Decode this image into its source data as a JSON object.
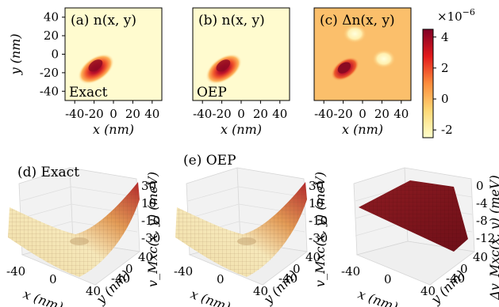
{
  "colors": {
    "colormap": [
      "#ffffcc",
      "#fed976",
      "#fd8d3c",
      "#e31a1c",
      "#800026"
    ],
    "panel_bg_abs": "#fffbcf",
    "panel_bg_diff": "#fbbf6b",
    "surface_low": "#f4e7b6",
    "surface_high": "#9b1b1b"
  },
  "chart_data": [
    {
      "type": "heatmap",
      "label": "(a) n(x, y)",
      "corner_text": "Exact",
      "xlabel": "x (nm)",
      "ylabel": "y (nm)",
      "xlim": [
        -50,
        50
      ],
      "ylim": [
        -50,
        50
      ],
      "xticks": [
        "-40",
        "-20",
        "0",
        "20",
        "40"
      ],
      "yticks": [
        "40",
        "20",
        "0",
        "-20",
        "-40"
      ],
      "peak": {
        "x": -18,
        "y": -16
      }
    },
    {
      "type": "heatmap",
      "label": "(b) n(x, y)",
      "corner_text": "OEP",
      "xlabel": "x (nm)",
      "xlim": [
        -50,
        50
      ],
      "ylim": [
        -50,
        50
      ],
      "xticks": [
        "-40",
        "-20",
        "0",
        "20",
        "40"
      ],
      "peak": {
        "x": -18,
        "y": -16
      }
    },
    {
      "type": "heatmap",
      "label": "(c) Δn(x, y)",
      "xlabel": "x (nm)",
      "xlim": [
        -50,
        50
      ],
      "ylim": [
        -50,
        50
      ],
      "xticks": [
        "-40",
        "-20",
        "0",
        "20",
        "40"
      ],
      "colorbar": {
        "exponent": "×10",
        "exponent_power": "−6",
        "ticks": [
          "4",
          "2",
          "0",
          "-2"
        ],
        "range": [
          -2.5,
          4.5
        ]
      },
      "features": [
        {
          "kind": "max",
          "x": -18,
          "y": -16,
          "value": 4
        },
        {
          "kind": "min",
          "x": -8,
          "y": 22,
          "value": -2
        },
        {
          "kind": "min",
          "x": 22,
          "y": -5,
          "value": -2
        }
      ]
    },
    {
      "type": "surface",
      "label": "(d) Exact",
      "zlabel": "v_Mxc(x, y) (meV)",
      "xlabel": "x (nm)",
      "ylabel": "y (nm)",
      "xticks": [
        "-40",
        "0",
        "40"
      ],
      "yticks": [
        "-40",
        "0",
        "40"
      ],
      "zticks": [
        "30",
        "10",
        "-10",
        "-30"
      ]
    },
    {
      "type": "surface",
      "label": "(e) OEP",
      "zlabel": "v_Mxc(x, y) (meV)",
      "xlabel": "x (nm)",
      "ylabel": "y (nm)",
      "xticks": [
        "-40",
        "0",
        "40"
      ],
      "yticks": [
        "-40",
        "0",
        "40"
      ],
      "zticks": [
        "30",
        "10",
        "-10",
        "-30"
      ]
    },
    {
      "type": "surface",
      "label": "",
      "zlabel": "Δv_Mxc(x, y) (meV)",
      "xlabel": "x (nm)",
      "ylabel": "y (nm)",
      "xticks": [
        "-40",
        "0",
        "40"
      ],
      "yticks": [
        "-40",
        "0",
        "40"
      ],
      "zticks": [
        "0",
        "-4",
        "-8",
        "-12"
      ]
    }
  ]
}
